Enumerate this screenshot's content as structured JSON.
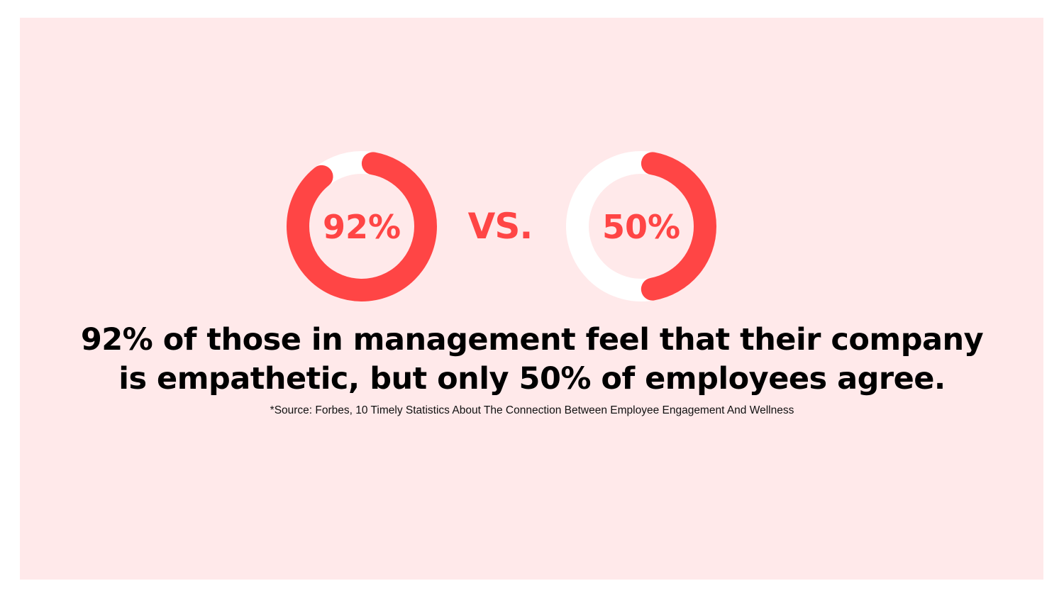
{
  "chart_data": [
    {
      "type": "pie",
      "style": "donut",
      "label": "92%",
      "value": 92,
      "max": 100,
      "colors": {
        "fill": "#FF4545",
        "track": "#FFFFFF"
      }
    },
    {
      "type": "pie",
      "style": "donut",
      "label": "50%",
      "value": 50,
      "max": 100,
      "colors": {
        "fill": "#FF4545",
        "track": "#FFFFFF"
      }
    }
  ],
  "vs_label": "VS.",
  "headline_line1": "92% of those in management feel that their company",
  "headline_line2": "is empathetic, but only 50% of employees agree.",
  "source": "*Source: Forbes, 10 Timely Statistics About The Connection Between Employee Engagement And Wellness",
  "colors": {
    "background": "#FFE9EA",
    "accent": "#FF4545",
    "text": "#000000"
  }
}
